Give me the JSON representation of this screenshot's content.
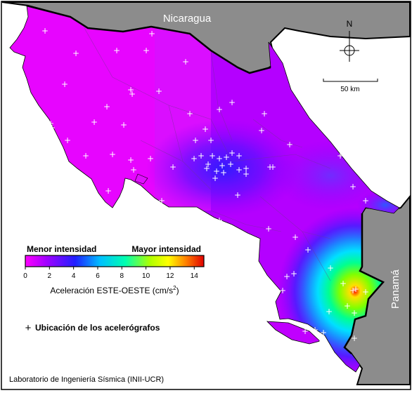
{
  "map": {
    "country_labels": {
      "north": "Nicaragua",
      "east": "Panamá"
    },
    "compass_label": "N",
    "scale_label": "50 km",
    "legend": {
      "low_label": "Menor intensidad",
      "high_label": "Mayor intensidad",
      "ticks": [
        "0",
        "2",
        "4",
        "6",
        "8",
        "10",
        "12",
        "14"
      ],
      "title": "Aceleración ESTE-OESTE (cm/s",
      "title_sup": "2",
      "title_close": ")",
      "colors": [
        "#ff00ff",
        "#a000ff",
        "#2020ff",
        "#00c0ff",
        "#00ffb0",
        "#b0ff00",
        "#ffff00",
        "#ff8000",
        "#e00000"
      ]
    },
    "station_legend": {
      "symbol": "+",
      "label": "Ubicación de los acelerógrafos"
    },
    "credit": "Laboratorio de Ingeniería Sísmica (INII-UCR)",
    "colors": {
      "ocean": "#ffffff",
      "neighbor_land": "#8c8c8c",
      "low_intensity": "#ff00ff",
      "peak_intensity": "#ff0000",
      "station_marker": "#ffffff"
    },
    "station_count": 80
  }
}
